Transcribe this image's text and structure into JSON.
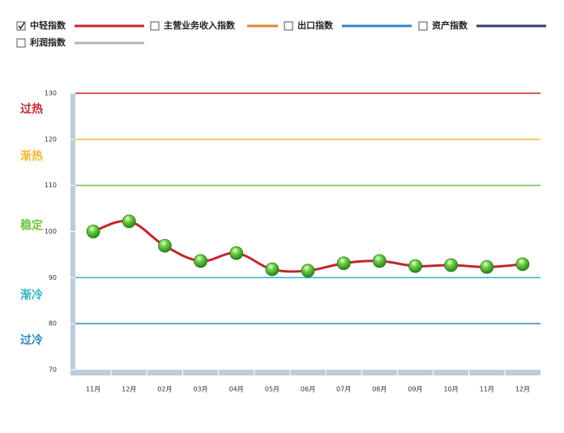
{
  "chart_data": {
    "type": "line",
    "categories": [
      "11月",
      "12月",
      "02月",
      "03月",
      "04月",
      "05月",
      "06月",
      "07月",
      "08月",
      "09月",
      "10月",
      "11月",
      "12月"
    ],
    "series": [
      {
        "name": "中轻指数",
        "color": "#c0272d",
        "checked": true,
        "values": [
          100,
          102.2,
          96.9,
          93.6,
          95.3,
          91.8,
          91.5,
          93.1,
          93.6,
          92.5,
          92.7,
          92.3,
          92.9
        ]
      },
      {
        "name": "主营业务收入指数",
        "color": "#e8862f",
        "checked": false
      },
      {
        "name": "出口指数",
        "color": "#2d8ac7",
        "checked": false
      },
      {
        "name": "资产指数",
        "color": "#2c3e6b",
        "checked": false
      },
      {
        "name": "利润指数",
        "color": "#b5b5b5",
        "checked": false
      }
    ],
    "zones": [
      {
        "label": "过热",
        "value": 130,
        "color": "#c0272d"
      },
      {
        "label": "渐热",
        "value": 120,
        "color": "#f5b82e"
      },
      {
        "label": "稳定",
        "value": 110,
        "color": "#6cc33a"
      },
      {
        "label": "渐冷",
        "value": 90,
        "color": "#2bb5c7"
      },
      {
        "label": "过冷",
        "value": 80,
        "color": "#2f84c0"
      }
    ],
    "ylim": [
      70,
      130
    ],
    "yticks": [
      70,
      80,
      90,
      100,
      110,
      120,
      130
    ]
  }
}
